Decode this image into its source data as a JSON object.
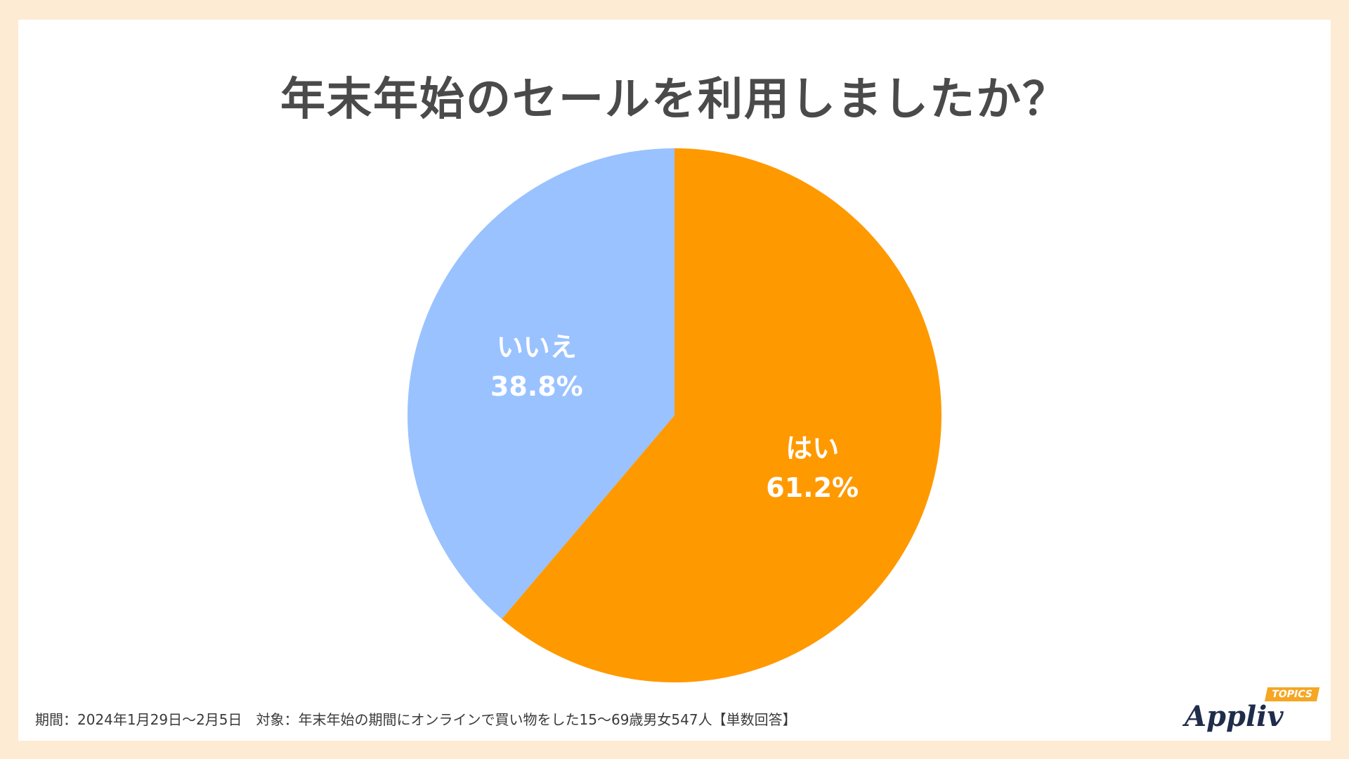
{
  "title": "年末年始のセールを利用しましたか？",
  "chart_data": {
    "type": "pie",
    "title": "年末年始のセールを利用しましたか？",
    "categories": [
      "はい",
      "いいえ"
    ],
    "values": [
      61.2,
      38.8
    ],
    "value_labels": [
      "61.2%",
      "38.8%"
    ],
    "colors": [
      "#ff9900",
      "#99c2ff"
    ],
    "start": "12 o'clock",
    "direction": "clockwise",
    "legend": "none",
    "label_placement": "inside"
  },
  "footnote": "期間：2024年1月29日〜2月5日　対象：年末年始の期間にオンラインで買い物をした15〜69歳男女547人【単数回答】",
  "logo": {
    "text": "Appliv",
    "badge": "TOPICS"
  }
}
